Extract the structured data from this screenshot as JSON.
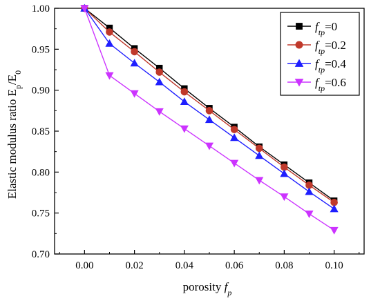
{
  "chart_data": {
    "type": "line",
    "xlabel": "porosity f_p",
    "xlabel_parts": {
      "main": "porosity ",
      "var": "f",
      "sub": "p"
    },
    "ylabel": "Elastic modulus ratio E_p/E_0",
    "ylabel_parts": {
      "main": "Elastic modulus ratio E",
      "sub1": "p",
      "slash": "/E",
      "sub2": "0"
    },
    "xlim": [
      -0.012,
      0.112
    ],
    "ylim": [
      0.7,
      1.0
    ],
    "x_ticks": [
      "0.00",
      "0.02",
      "0.04",
      "0.06",
      "0.08",
      "0.10"
    ],
    "y_ticks": [
      "0.70",
      "0.75",
      "0.80",
      "0.85",
      "0.90",
      "0.95",
      "1.00"
    ],
    "x_tick_values": [
      0.0,
      0.02,
      0.04,
      0.06,
      0.08,
      0.1
    ],
    "y_tick_values": [
      0.7,
      0.75,
      0.8,
      0.85,
      0.9,
      0.95,
      1.0
    ],
    "legend_position": "top-right",
    "grid": false,
    "x": [
      0.0,
      0.01,
      0.02,
      0.03,
      0.04,
      0.05,
      0.06,
      0.07,
      0.08,
      0.09,
      0.1
    ],
    "series": [
      {
        "name": "f_tp=0",
        "legend_var": "f",
        "legend_sub": "tp",
        "legend_value": "=0",
        "color": "#000000",
        "marker": "square",
        "values": [
          1.0,
          0.976,
          0.951,
          0.927,
          0.902,
          0.878,
          0.855,
          0.831,
          0.809,
          0.787,
          0.765
        ]
      },
      {
        "name": "f_tp=0.2",
        "legend_var": "f",
        "legend_sub": "tp",
        "legend_value": "=0.2",
        "color": "#c0392b",
        "marker": "circle",
        "values": [
          1.0,
          0.971,
          0.947,
          0.922,
          0.898,
          0.875,
          0.852,
          0.829,
          0.806,
          0.784,
          0.763
        ]
      },
      {
        "name": "f_tp=0.4",
        "legend_var": "f",
        "legend_sub": "tp",
        "legend_value": "=0.4",
        "color": "#1f1fff",
        "marker": "triangle-up",
        "values": [
          1.0,
          0.957,
          0.933,
          0.91,
          0.886,
          0.864,
          0.842,
          0.82,
          0.798,
          0.776,
          0.755
        ]
      },
      {
        "name": "f_tp=0.6",
        "legend_var": "f",
        "legend_sub": "tp",
        "legend_value": "=0.6",
        "color": "#cc33ff",
        "marker": "triangle-down",
        "values": [
          1.0,
          0.918,
          0.896,
          0.874,
          0.853,
          0.832,
          0.811,
          0.79,
          0.77,
          0.749,
          0.729
        ]
      }
    ]
  }
}
